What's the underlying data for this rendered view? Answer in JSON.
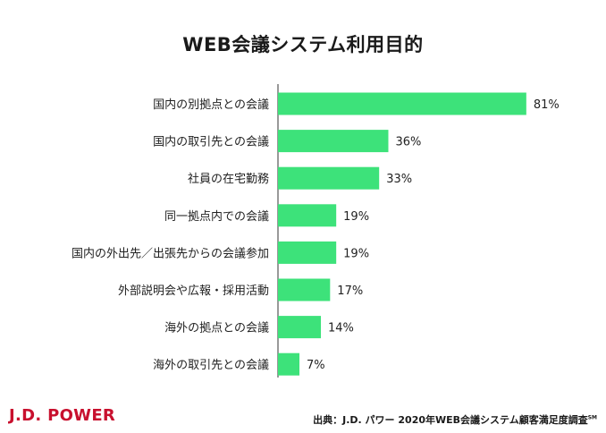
{
  "chart_data": {
    "type": "bar",
    "orientation": "horizontal",
    "title": "WEB会議システム利用目的",
    "categories": [
      "国内の別拠点との会議",
      "国内の取引先との会議",
      "社員の在宅勤務",
      "同一拠点内での会議",
      "国内の外出先／出張先からの会議参加",
      "外部説明会や広報・採用活動",
      "海外の拠点との会議",
      "海外の取引先との会議"
    ],
    "values": [
      81,
      36,
      33,
      19,
      19,
      17,
      14,
      7
    ],
    "value_labels": [
      "81%",
      "36%",
      "33%",
      "19%",
      "19%",
      "17%",
      "14%",
      "7%"
    ],
    "xlim": [
      0,
      100
    ],
    "grid": false,
    "bar_color": "#3de27a"
  },
  "footer": {
    "logo": "J.D. POWER",
    "source": "出典：J.D. パワー 2020年WEB会議システム顧客満足度調査",
    "source_mark": "SM"
  }
}
